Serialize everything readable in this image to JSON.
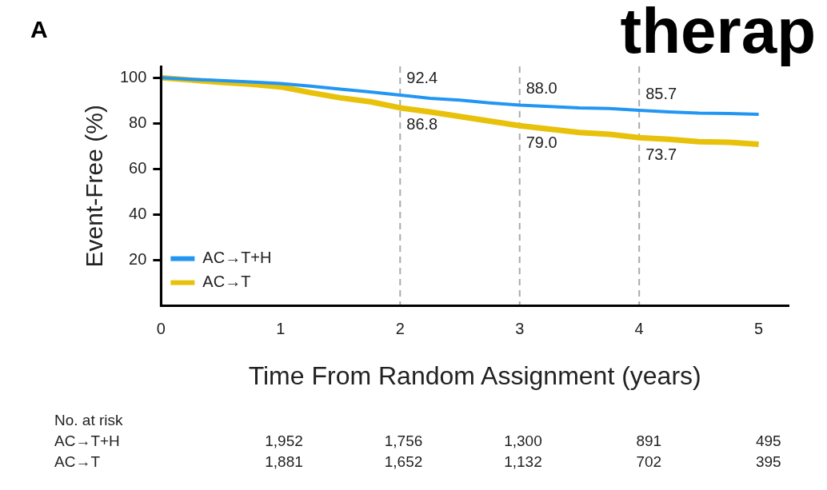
{
  "chart_data": {
    "type": "line",
    "title": "A",
    "xlabel": "Time From Random Assignment (years)",
    "ylabel": "Event-Free (%)",
    "x": [
      0,
      0.25,
      0.5,
      0.75,
      1,
      1.25,
      1.5,
      1.75,
      2,
      2.25,
      2.5,
      2.75,
      3,
      3.25,
      3.5,
      3.75,
      4,
      4.25,
      4.5,
      4.75,
      5
    ],
    "series": [
      {
        "name": "AC→T+H",
        "color": "#2196f3",
        "values": [
          100,
          99.3,
          98.8,
          98.2,
          97.5,
          96.3,
          95,
          93.8,
          92.4,
          91,
          90.2,
          89,
          88,
          87.4,
          86.8,
          86.5,
          85.7,
          85,
          84.5,
          84.3,
          84
        ]
      },
      {
        "name": "AC→T",
        "color": "#e8c10a",
        "values": [
          100,
          99,
          98,
          97.2,
          96,
          93.5,
          91.2,
          89.5,
          86.8,
          85,
          83,
          81,
          79,
          77.5,
          76,
          75.2,
          73.7,
          73,
          72,
          71.7,
          70.8
        ]
      }
    ],
    "xlim": [
      0,
      5.25
    ],
    "xticks": [
      0,
      1,
      2,
      3,
      4,
      5
    ],
    "ylim": [
      0,
      105
    ],
    "yticks": [
      20,
      40,
      60,
      80,
      100
    ],
    "ref_lines": [
      {
        "axis": "x",
        "value": 2,
        "color": "#aaaaaa",
        "line_style": "dashed"
      },
      {
        "axis": "x",
        "value": 3,
        "color": "#aaaaaa",
        "line_style": "dashed"
      },
      {
        "axis": "x",
        "value": 4,
        "color": "#aaaaaa",
        "line_style": "dashed"
      }
    ],
    "annotations": [
      {
        "text": "92.4",
        "x": 2,
        "y": 92.4
      },
      {
        "text": "86.8",
        "x": 2,
        "y": 86.8
      },
      {
        "text": "88.0",
        "x": 3,
        "y": 88.0
      },
      {
        "text": "79.0",
        "x": 3,
        "y": 79.0
      },
      {
        "text": "85.7",
        "x": 4,
        "y": 85.7
      },
      {
        "text": "73.7",
        "x": 4,
        "y": 73.7
      },
      "therap",
      "No. at risk",
      "AC→T+H",
      "1,952",
      "1,756",
      "1,300",
      "891",
      "495",
      "AC→T",
      "1,881",
      "1,652",
      "1,132",
      "702",
      "395"
    ],
    "legend": "bottom left",
    "grid": false,
    "marker": "none",
    "line_style": "solid"
  }
}
